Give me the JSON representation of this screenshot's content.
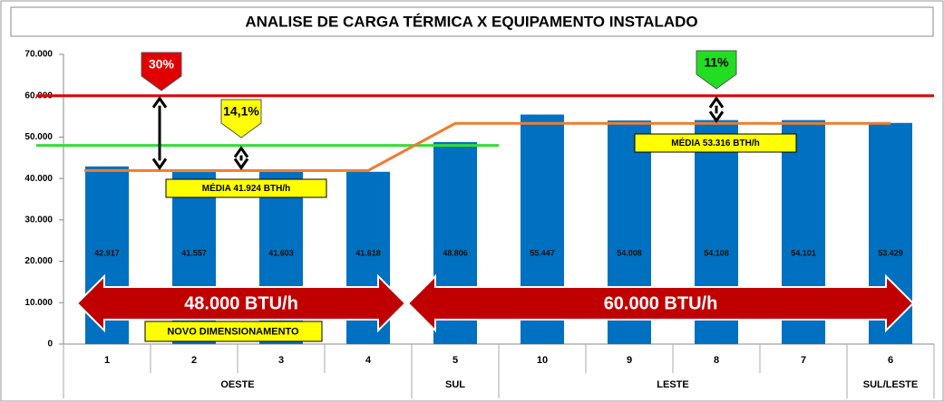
{
  "chart_data": {
    "type": "bar",
    "title": "ANALISE DE CARGA TÉRMICA X EQUIPAMENTO INSTALADO",
    "categories": [
      "1",
      "2",
      "3",
      "4",
      "5",
      "10",
      "9",
      "8",
      "7",
      "6"
    ],
    "values": [
      42917,
      41557,
      41603,
      41618,
      48806,
      55447,
      54008,
      54108,
      54101,
      53429
    ],
    "value_labels": [
      "42.917",
      "41.557",
      "41.603",
      "41.618",
      "48.806",
      "55.447",
      "54.008",
      "54.108",
      "54.101",
      "53.429"
    ],
    "color": "#0070c0",
    "groups": [
      {
        "label": "OESTE",
        "span": 4
      },
      {
        "label": "SUL",
        "span": 1
      },
      {
        "label": "LESTE",
        "span": 4
      },
      {
        "label": "SUL/LESTE",
        "span": 1
      }
    ],
    "ylim": [
      0,
      70000
    ],
    "yticks": [
      {
        "value": 0,
        "label": "0"
      },
      {
        "value": 10000,
        "label": "10.000"
      },
      {
        "value": 20000,
        "label": "20.000"
      },
      {
        "value": 30000,
        "label": "30.000"
      },
      {
        "value": 40000,
        "label": "40.000"
      },
      {
        "value": 50000,
        "label": "50.000"
      },
      {
        "value": 60000,
        "label": "60.000"
      },
      {
        "value": 70000,
        "label": "70.000"
      }
    ],
    "reference_lines": [
      {
        "value": 60000,
        "label": "60.000 BTU/h",
        "color": "#e00000"
      },
      {
        "value": 48000,
        "label": "48.000 BTU/h",
        "color": "#33dd33"
      }
    ],
    "averages": [
      {
        "value": 41924,
        "label": "MÉDIA 41.924 BTH/h"
      },
      {
        "value": 53316,
        "label": "MÉDIA 53.316 BTH/h"
      }
    ],
    "average_color": "#ed7d31",
    "callouts": [
      {
        "label": "30%",
        "color": "#e00000"
      },
      {
        "label": "14,1%",
        "color": "#ffff00"
      },
      {
        "label": "11%",
        "color": "#22dd22"
      }
    ],
    "note": "NOVO DIMENSIONAMENTO"
  }
}
